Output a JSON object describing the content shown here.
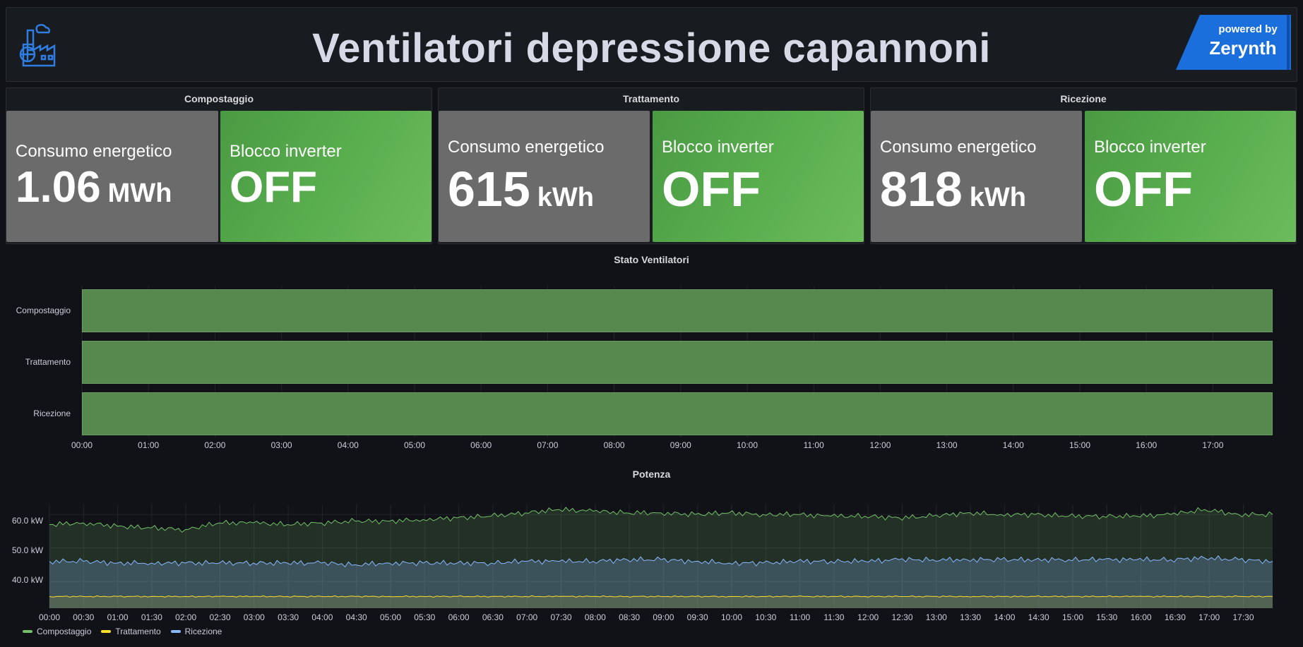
{
  "header": {
    "title": "Ventilatori depressione capannoni",
    "logo_icon": "factory-icon",
    "badge": {
      "top": "powered by",
      "brand": "Zerynth"
    }
  },
  "groups": [
    {
      "name": "Compostaggio",
      "consumption": {
        "label": "Consumo energetico",
        "value": "1.06",
        "unit": "MWh"
      },
      "inverter": {
        "label": "Blocco inverter",
        "value": "OFF"
      }
    },
    {
      "name": "Trattamento",
      "consumption": {
        "label": "Consumo energetico",
        "value": "615",
        "unit": "kWh"
      },
      "inverter": {
        "label": "Blocco inverter",
        "value": "OFF"
      }
    },
    {
      "name": "Ricezione",
      "consumption": {
        "label": "Consumo energetico",
        "value": "818",
        "unit": "kWh"
      },
      "inverter": {
        "label": "Blocco inverter",
        "value": "OFF"
      }
    }
  ],
  "colors": {
    "state_on": "#57894f",
    "compostaggio": "#73bf69",
    "trattamento": "#fade2a",
    "ricezione": "#8ab8ff",
    "stat_grey": "#6b6b6b",
    "stat_green": "#58ad4d"
  },
  "state_panel": {
    "title": "Stato Ventilatori",
    "rows": [
      "Compostaggio",
      "Trattamento",
      "Ricezione"
    ],
    "x_ticks": [
      "00:00",
      "01:00",
      "02:00",
      "03:00",
      "04:00",
      "05:00",
      "06:00",
      "07:00",
      "08:00",
      "09:00",
      "10:00",
      "11:00",
      "12:00",
      "13:00",
      "14:00",
      "15:00",
      "16:00",
      "17:00"
    ]
  },
  "power_panel": {
    "title": "Potenza",
    "y_ticks": [
      "60.0 kW",
      "50.0 kW",
      "40.0 kW"
    ],
    "x_ticks": [
      "00:00",
      "00:30",
      "01:00",
      "01:30",
      "02:00",
      "02:30",
      "03:00",
      "03:30",
      "04:00",
      "04:30",
      "05:00",
      "05:30",
      "06:00",
      "06:30",
      "07:00",
      "07:30",
      "08:00",
      "08:30",
      "09:00",
      "09:30",
      "10:00",
      "10:30",
      "11:00",
      "11:30",
      "12:00",
      "12:30",
      "13:00",
      "13:30",
      "14:00",
      "14:30",
      "15:00",
      "15:30",
      "16:00",
      "16:30",
      "17:00",
      "17:30"
    ],
    "legend": [
      "Compostaggio",
      "Trattamento",
      "Ricezione"
    ]
  },
  "chart_data": {
    "type": "area",
    "title": "Potenza",
    "xlabel": "",
    "ylabel": "",
    "ylim": [
      32,
      63
    ],
    "x": [
      "00:00",
      "00:30",
      "01:00",
      "01:30",
      "02:00",
      "02:30",
      "03:00",
      "03:30",
      "04:00",
      "04:30",
      "05:00",
      "05:30",
      "06:00",
      "06:30",
      "07:00",
      "07:30",
      "08:00",
      "08:30",
      "09:00",
      "09:30",
      "10:00",
      "10:30",
      "11:00",
      "11:30",
      "12:00",
      "12:30",
      "13:00",
      "13:30",
      "14:00",
      "14:30",
      "15:00",
      "15:30",
      "16:00",
      "16:30",
      "17:00",
      "17:30",
      "17:55"
    ],
    "series": [
      {
        "name": "Compostaggio",
        "values": [
          57,
          57.5,
          56.5,
          56,
          55.5,
          57.5,
          57.5,
          57,
          57.5,
          58,
          58,
          58.5,
          59,
          59.5,
          60.5,
          61.5,
          61,
          60.5,
          60.5,
          60,
          60.5,
          60,
          60,
          59.5,
          59.5,
          59,
          59.5,
          60.5,
          60,
          60,
          59.5,
          59.5,
          59.5,
          60,
          61.5,
          60,
          60
        ]
      },
      {
        "name": "Trattamento",
        "values": [
          35.5,
          35.5,
          35.5,
          35.5,
          35.5,
          35.5,
          35.5,
          35.5,
          35.5,
          35.5,
          35.5,
          35.5,
          35.5,
          35.5,
          35.5,
          35.5,
          35.5,
          35.5,
          35.5,
          35.5,
          35.5,
          35.5,
          35.5,
          35.5,
          35.5,
          35.5,
          35.5,
          35.5,
          35.5,
          35.5,
          35.5,
          35.5,
          35.5,
          35.5,
          35.5,
          35.5,
          35.5
        ]
      },
      {
        "name": "Ricezione",
        "values": [
          46,
          46,
          45.5,
          45.5,
          45.5,
          45.5,
          45.5,
          45.5,
          45.5,
          45,
          45.5,
          45.5,
          45.5,
          45.5,
          46,
          46,
          46,
          46.5,
          46.5,
          46,
          45.5,
          45.5,
          46,
          46,
          46,
          46.5,
          46.5,
          46.5,
          46.5,
          46.5,
          46.5,
          46.5,
          46.5,
          46.5,
          47,
          46.5,
          46
        ]
      }
    ],
    "grid": true,
    "legend": "bottom-left"
  }
}
